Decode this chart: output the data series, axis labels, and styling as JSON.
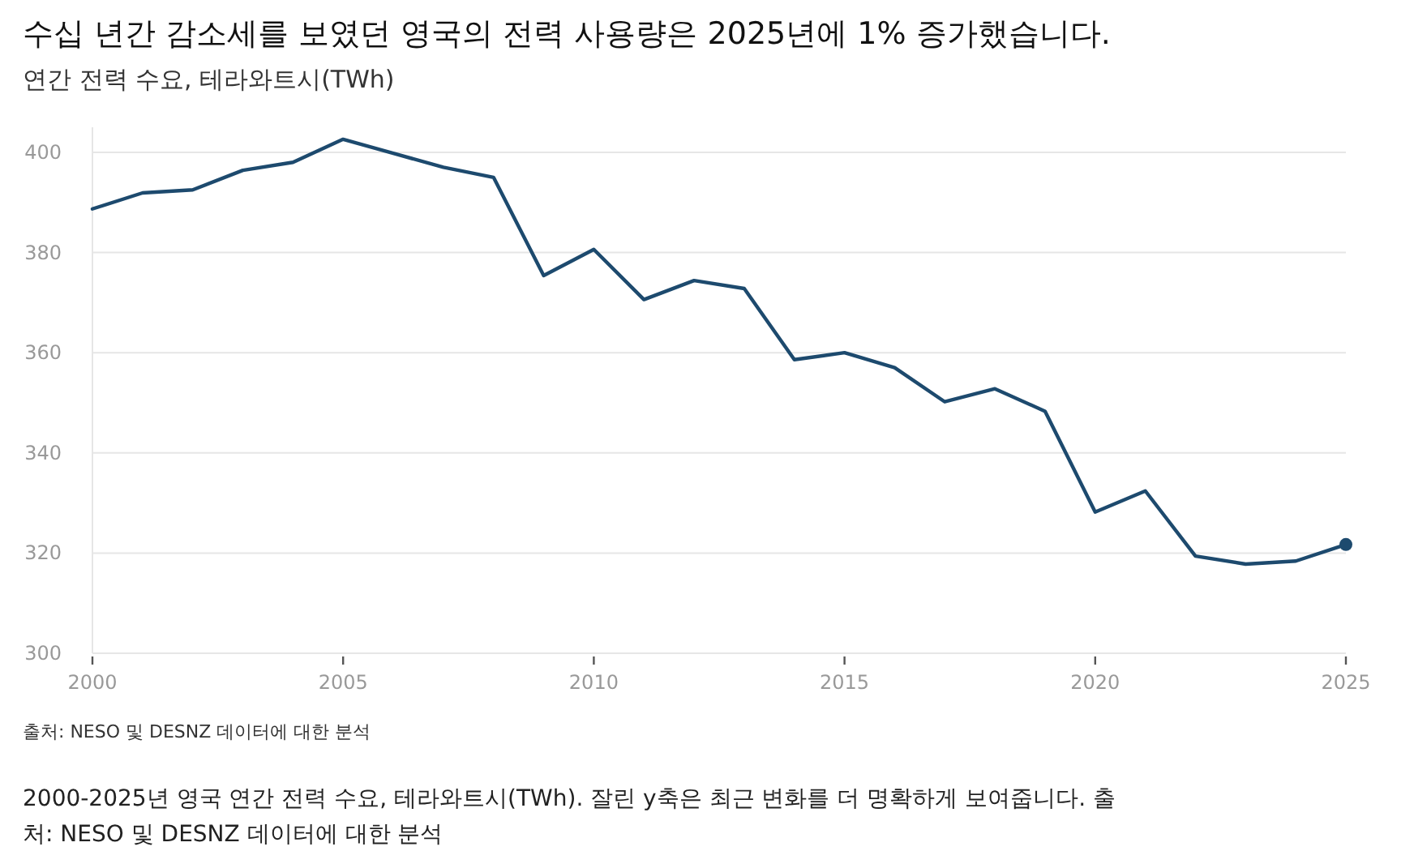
{
  "chart_data": {
    "type": "line",
    "title": "수십 년간 감소세를 보였던 영국의 전력 사용량은 2025년에 1% 증가했습니다.",
    "subtitle": "연간 전력 수요, 테라와트시(TWh)",
    "x": [
      2000,
      2001,
      2002,
      2003,
      2004,
      2005,
      2006,
      2007,
      2008,
      2009,
      2010,
      2011,
      2012,
      2013,
      2014,
      2015,
      2016,
      2017,
      2018,
      2019,
      2020,
      2021,
      2022,
      2023,
      2024,
      2025
    ],
    "series": [
      {
        "color": "#1d4a6e",
        "marker": "none",
        "values": [
          388.7,
          391.9,
          392.5,
          396.4,
          398.0,
          402.6,
          399.8,
          397.0,
          395.0,
          375.4,
          380.6,
          370.6,
          374.4,
          372.8,
          358.6,
          360.0,
          357.0,
          350.2,
          352.8,
          348.3,
          328.2,
          332.4,
          319.4,
          317.8,
          318.4,
          321.7
        ]
      },
      {
        "type": "scatter",
        "color": "#1d4a6e",
        "marker": "circle",
        "x": [
          2025
        ],
        "values": [
          321.7
        ]
      }
    ],
    "xlim": [
      2000,
      2025
    ],
    "xticks": [
      2000,
      2005,
      2010,
      2015,
      2020,
      2025
    ],
    "ylim": [
      300,
      405
    ],
    "yticks": [
      300,
      320,
      340,
      360,
      380,
      400
    ],
    "grid": "y",
    "line_style": "solid",
    "annotations": [
      "출처: NESO 및 DESNZ 데이터에 대한 분석",
      "2000-2025년 영국 연간 전력 수요, 테라와트시(TWh). 잘린 y축은 최근 변화를 더 명확하게 보여줍니다. 출처: NESO 및 DESNZ 데이터에 대한 분석"
    ]
  }
}
